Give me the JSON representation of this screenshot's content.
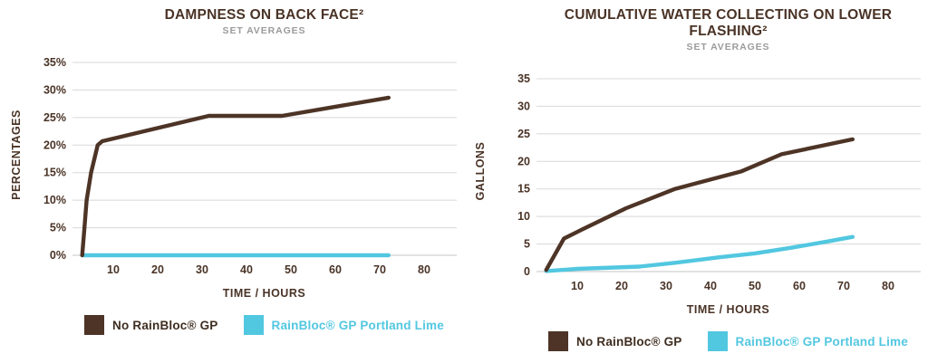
{
  "colors": {
    "brown": "#4d3426",
    "cyan": "#52c7e0",
    "grid": "#d8d8d8",
    "zero_axis": "#c6c6c6",
    "title_text": "#4a3326",
    "subtitle_text": "#9b9b9b",
    "legend_brown_text": "#3f2d20",
    "legend_cyan_text": "#52c7e0"
  },
  "legend_items": [
    {
      "label": "No RainBloc® GP",
      "color": "#4d3426",
      "text_color": "#3f2d20"
    },
    {
      "label": "RainBloc® GP Portland Lime",
      "color": "#52c7e0",
      "text_color": "#52c7e0"
    }
  ],
  "chart_data": [
    {
      "type": "line",
      "title": "DAMPNESS ON BACK FACE²",
      "subtitle": "SET AVERAGES",
      "xlabel": "TIME / HOURS",
      "ylabel": "PERCENTAGES",
      "xlim": [
        0,
        88
      ],
      "ylim": [
        0,
        35
      ],
      "xticks": [
        10,
        20,
        30,
        40,
        50,
        60,
        70,
        80
      ],
      "yticks": [
        0,
        5,
        10,
        15,
        20,
        25,
        30,
        35
      ],
      "ytick_suffix": "%",
      "grid": true,
      "legend_position": "bottom",
      "series": [
        {
          "name": "No RainBloc® GP",
          "color": "#4d3426",
          "points": [
            [
              3,
              0
            ],
            [
              3.5,
              5
            ],
            [
              4,
              10
            ],
            [
              5,
              15
            ],
            [
              6.5,
              20
            ],
            [
              7.5,
              20.7
            ],
            [
              31.5,
              25.3
            ],
            [
              48,
              25.3
            ],
            [
              72,
              28.6
            ]
          ]
        },
        {
          "name": "RainBloc® GP Portland Lime",
          "color": "#52c7e0",
          "points": [
            [
              3,
              0
            ],
            [
              72,
              0
            ]
          ]
        }
      ]
    },
    {
      "type": "line",
      "title": "CUMULATIVE WATER COLLECTING ON LOWER FLASHING²",
      "subtitle": "SET AVERAGES",
      "xlabel": "TIME / HOURS",
      "ylabel": "GALLONS",
      "xlim": [
        0,
        88
      ],
      "ylim": [
        0,
        35
      ],
      "xticks": [
        10,
        20,
        30,
        40,
        50,
        60,
        70,
        80
      ],
      "yticks": [
        0,
        5,
        10,
        15,
        20,
        25,
        30,
        35
      ],
      "ytick_suffix": "",
      "grid": true,
      "legend_position": "bottom",
      "series": [
        {
          "name": "No RainBloc® GP",
          "color": "#4d3426",
          "points": [
            [
              3,
              0.3
            ],
            [
              7,
              6
            ],
            [
              11,
              7.6
            ],
            [
              21,
              11.5
            ],
            [
              32,
              15
            ],
            [
              47,
              18.2
            ],
            [
              56,
              21.3
            ],
            [
              72,
              24
            ]
          ]
        },
        {
          "name": "RainBloc® GP Portland Lime",
          "color": "#52c7e0",
          "points": [
            [
              3,
              0.1
            ],
            [
              10,
              0.5
            ],
            [
              24,
              0.9
            ],
            [
              32,
              1.6
            ],
            [
              42,
              2.6
            ],
            [
              50,
              3.3
            ],
            [
              58,
              4.3
            ],
            [
              66,
              5.4
            ],
            [
              72,
              6.3
            ]
          ]
        }
      ]
    }
  ]
}
